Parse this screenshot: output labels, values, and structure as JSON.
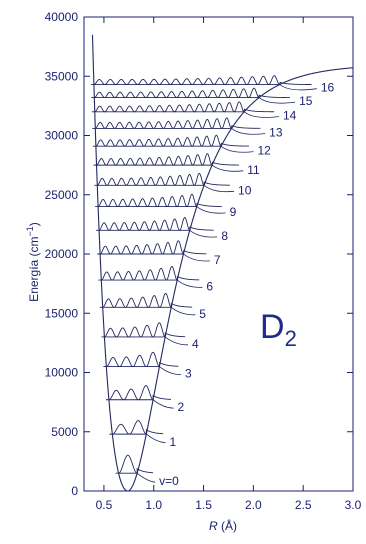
{
  "chart_data": {
    "type": "line",
    "species": "D",
    "species_subscript": "2",
    "xlabel_symbol": "R",
    "xlabel_unit": " (Å)",
    "ylabel_main": "Energía (cm",
    "ylabel_exp": "−1",
    "ylabel_close": ")",
    "xlim": [
      0.3,
      3.0
    ],
    "ylim": [
      0,
      40000
    ],
    "x_ticks": [
      0.5,
      1.0,
      1.5,
      2.0,
      2.5,
      3.0
    ],
    "x_tick_labels": [
      "0.5",
      "1.0",
      "1.5",
      "2.0",
      "2.5",
      "3.0"
    ],
    "y_ticks": [
      0,
      5000,
      10000,
      15000,
      20000,
      25000,
      30000,
      35000,
      40000
    ],
    "y_tick_labels": [
      "0",
      "5000",
      "10000",
      "15000",
      "20000",
      "25000",
      "30000",
      "35000",
      "40000"
    ],
    "grid": false,
    "potential": {
      "description": "Morse-like potential energy curve",
      "equilibrium_R": 0.74,
      "dissociation_energy": 36000
    },
    "levels": [
      {
        "label": "v=0",
        "energy": 1500
      },
      {
        "label": "1",
        "energy": 4800
      },
      {
        "label": "2",
        "energy": 7700
      },
      {
        "label": "3",
        "energy": 10500
      },
      {
        "label": "4",
        "energy": 13000
      },
      {
        "label": "5",
        "energy": 15500
      },
      {
        "label": "6",
        "energy": 17800
      },
      {
        "label": "7",
        "energy": 20000
      },
      {
        "label": "8",
        "energy": 22000
      },
      {
        "label": "9",
        "energy": 24000
      },
      {
        "label": "10",
        "energy": 25800
      },
      {
        "label": "11",
        "energy": 27500
      },
      {
        "label": "12",
        "energy": 29100
      },
      {
        "label": "13",
        "energy": 30600
      },
      {
        "label": "14",
        "energy": 32000
      },
      {
        "label": "15",
        "energy": 33200
      },
      {
        "label": "16",
        "energy": 34300
      }
    ],
    "colors": {
      "ink": "#1a1f6e",
      "curve": "#23285e",
      "species": "#1f2a8c"
    }
  }
}
